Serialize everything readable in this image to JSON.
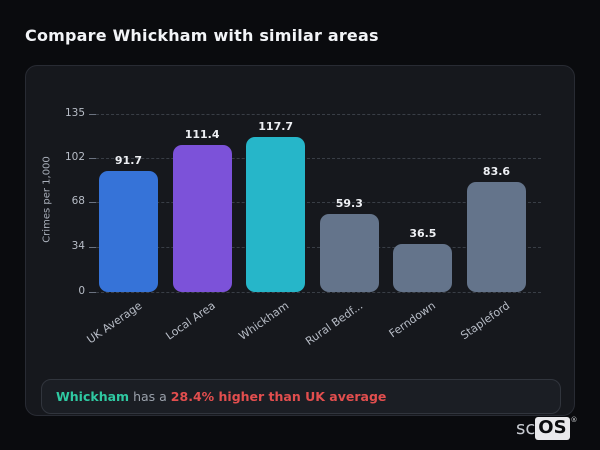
{
  "header": {
    "title": "Compare Whickham with similar areas"
  },
  "chart_data": {
    "type": "bar",
    "title": "",
    "xlabel": "",
    "ylabel": "Crimes per 1,000",
    "categories": [
      "UK Average",
      "Local Area",
      "Whickham",
      "Rural Bedf...",
      "Ferndown",
      "Stapleford"
    ],
    "values": [
      91.7,
      111.4,
      117.7,
      59.3,
      36.5,
      83.6
    ],
    "value_labels": [
      "91.7",
      "111.4",
      "117.7",
      "59.3",
      "36.5",
      "83.6"
    ],
    "bar_colors": [
      "#3673d8",
      "#7c52d9",
      "#26b6c9",
      "#64748b",
      "#64748b",
      "#64748b"
    ],
    "yticks": [
      0,
      34,
      68,
      102,
      135
    ],
    "ylim": [
      0,
      135
    ],
    "grid": "horizontal-dashed",
    "legend": "none"
  },
  "annotation": {
    "area": "Whickham",
    "connector": "has a",
    "stat": "28.4% higher than UK average",
    "area_color": "#2fc9a2",
    "stat_color": "#e24e4e"
  },
  "logo": {
    "prefix": "sc",
    "emphasis": "OS",
    "mark": "®"
  },
  "colors": {
    "page_bg": "#0a0b0e",
    "card_bg": "#16181d",
    "card_border": "#282b33",
    "annotation_bg": "#1b1e24",
    "annotation_border": "#31353d",
    "axis_text": "#b7bcc6",
    "value_label": "#edeff3",
    "title_text": "#f2f4f7"
  }
}
